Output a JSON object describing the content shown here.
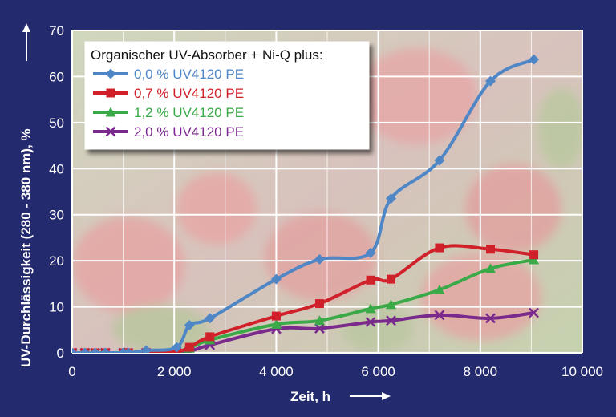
{
  "colors": {
    "background": "#242a6e",
    "grid": "#ffffff",
    "photo_wash": "#c9d6b4"
  },
  "chart_data": {
    "type": "line",
    "xlabel": "Zeit, h",
    "ylabel": "UV-Durchlässigkeit (280 - 380 nm), %",
    "xlim": [
      0,
      10000
    ],
    "ylim": [
      0,
      70
    ],
    "x_ticks": [
      0,
      2000,
      4000,
      6000,
      8000,
      10000
    ],
    "x_tick_labels": [
      "0",
      "2 000",
      "4 000",
      "6 000",
      "8 000",
      "10 000"
    ],
    "y_ticks": [
      0,
      10,
      20,
      30,
      40,
      50,
      60,
      70
    ],
    "y_tick_labels": [
      "0",
      "10",
      "20",
      "30",
      "40",
      "50",
      "60",
      "70"
    ],
    "grid": true,
    "legend_title": "Organischer UV-Absorber + Ni-Q plus:",
    "legend_position": "top-left",
    "series": [
      {
        "name": "0,0 % UV4120 PE",
        "color": "#4f86c6",
        "marker": "diamond",
        "x": [
          0,
          250,
          450,
          650,
          1000,
          1100,
          1450,
          2050,
          2300,
          2700,
          4000,
          4850,
          5850,
          6250,
          7200,
          8200,
          9050
        ],
        "y": [
          0,
          0,
          0,
          0,
          0,
          0,
          0.5,
          1.2,
          6,
          7.5,
          16,
          20.3,
          21.7,
          33.5,
          41.8,
          59,
          63.7
        ]
      },
      {
        "name": "0,7 % UV4120 PE",
        "color": "#d0202a",
        "marker": "square",
        "x": [
          0,
          250,
          450,
          650,
          1000,
          1100,
          1450,
          2050,
          2300,
          2700,
          4000,
          4850,
          5850,
          6250,
          7200,
          8200,
          9050
        ],
        "y": [
          0,
          0,
          0,
          0,
          0,
          0,
          0,
          0.3,
          1.2,
          3.5,
          8,
          10.7,
          15.8,
          16,
          22.8,
          22.5,
          21.3
        ]
      },
      {
        "name": "1,2 % UV4120 PE",
        "color": "#3aaa48",
        "marker": "triangle",
        "x": [
          0,
          250,
          450,
          650,
          1000,
          1100,
          1450,
          2050,
          2300,
          2700,
          4000,
          4850,
          5850,
          6250,
          7200,
          8200,
          9050
        ],
        "y": [
          0,
          0,
          0,
          0,
          0,
          0,
          0,
          0.2,
          1,
          2.8,
          6.2,
          7,
          9.6,
          10.5,
          13.7,
          18.3,
          20.2
        ]
      },
      {
        "name": "2,0 % UV4120 PE",
        "color": "#7a2a8c",
        "marker": "x",
        "x": [
          0,
          250,
          450,
          650,
          1000,
          1100,
          1450,
          2050,
          2300,
          2700,
          4000,
          4850,
          5850,
          6250,
          7200,
          8200,
          9050
        ],
        "y": [
          0,
          0,
          0,
          0,
          0,
          0,
          0,
          0,
          0.3,
          1.7,
          5.2,
          5.3,
          6.7,
          7,
          8.2,
          7.5,
          8.7
        ]
      }
    ]
  }
}
